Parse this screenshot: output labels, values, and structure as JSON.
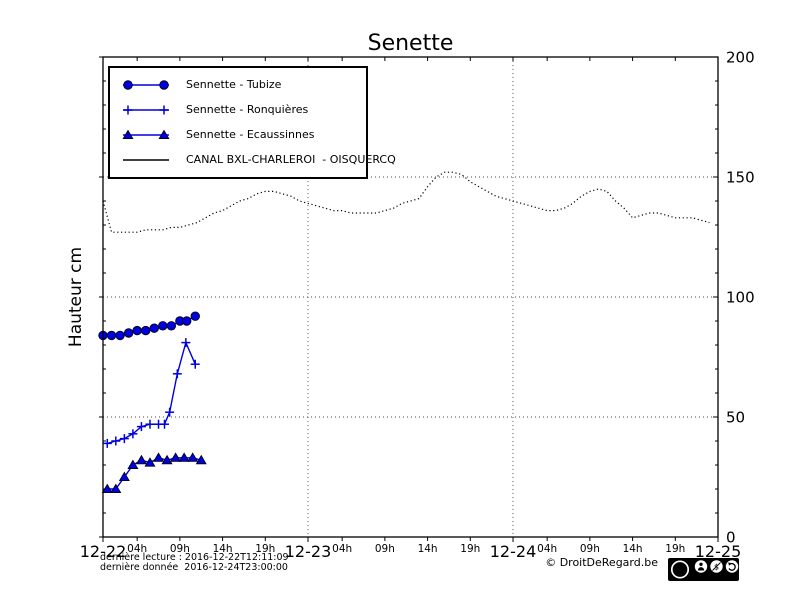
{
  "chart_data": {
    "type": "line",
    "title": "Senette",
    "ylabel": "Hauteur cm",
    "ylim": [
      0,
      200
    ],
    "x_hours_total": 72,
    "grid": {
      "h_values": [
        50,
        100,
        150
      ],
      "v_hours": [
        24,
        48
      ]
    },
    "yticks": {
      "major": [
        0,
        50,
        100,
        150,
        200
      ],
      "minor_step": 10
    },
    "xticks": {
      "days": [
        {
          "label": "12-22",
          "hour": 0
        },
        {
          "label": "12-23",
          "hour": 24
        },
        {
          "label": "12-24",
          "hour": 48
        },
        {
          "label": "12-25",
          "hour": 72
        }
      ],
      "hours": [
        {
          "label": "04h",
          "hour": 4
        },
        {
          "label": "09h",
          "hour": 9
        },
        {
          "label": "14h",
          "hour": 14
        },
        {
          "label": "19h",
          "hour": 19
        },
        {
          "label": "04h",
          "hour": 28
        },
        {
          "label": "09h",
          "hour": 33
        },
        {
          "label": "14h",
          "hour": 38
        },
        {
          "label": "19h",
          "hour": 43
        },
        {
          "label": "04h",
          "hour": 52
        },
        {
          "label": "09h",
          "hour": 57
        },
        {
          "label": "14h",
          "hour": 62
        },
        {
          "label": "19h",
          "hour": 67
        }
      ]
    },
    "series": [
      {
        "name": "Sennette - Tubize",
        "marker": "circle",
        "line": "solid",
        "color": "#0000dd",
        "hours": [
          0,
          1,
          2,
          3,
          4,
          5,
          6,
          7,
          8,
          9,
          9.8,
          10.8
        ],
        "values": [
          84,
          84,
          84,
          85,
          86,
          86,
          87,
          88,
          88,
          90,
          90,
          92
        ]
      },
      {
        "name": "Sennette - Ronquières",
        "marker": "plus",
        "line": "solid",
        "color": "#0000dd",
        "hours": [
          0.5,
          1.5,
          2.5,
          3.5,
          4.5,
          5.5,
          6.5,
          7.2,
          7.8,
          8.7,
          9.7,
          10.8
        ],
        "values": [
          39,
          40,
          41,
          43,
          46,
          47,
          47,
          47,
          52,
          68,
          81,
          72
        ]
      },
      {
        "name": "Sennette - Ecaussinnes",
        "marker": "triangle",
        "line": "solid",
        "color": "#0000dd",
        "hours": [
          0.5,
          1.5,
          2.5,
          3.5,
          4.5,
          5.5,
          6.5,
          7.5,
          8.5,
          9.5,
          10.5,
          11.5
        ],
        "values": [
          20,
          20,
          25,
          30,
          32,
          31,
          33,
          32,
          33,
          33,
          33,
          32
        ]
      },
      {
        "name": "CANAL BXL-CHARLEROI  - OISQUERCQ",
        "marker": "none",
        "line": "dotted",
        "color": "#000000",
        "hours": [
          0,
          1,
          2,
          3,
          4,
          5,
          6,
          7,
          8,
          9,
          10,
          11,
          12,
          13,
          14,
          15,
          16,
          17,
          18,
          19,
          20,
          21,
          22,
          23,
          24,
          25,
          26,
          27,
          28,
          29,
          30,
          31,
          32,
          33,
          34,
          35,
          36,
          37,
          38,
          39,
          40,
          41,
          42,
          43,
          44,
          45,
          46,
          47,
          48,
          49,
          50,
          51,
          52,
          53,
          54,
          55,
          56,
          57,
          58,
          59,
          60,
          61,
          62,
          63,
          64,
          65,
          66,
          67,
          68,
          69,
          70,
          71
        ],
        "values": [
          140,
          127,
          127,
          127,
          127,
          128,
          128,
          128,
          129,
          129,
          130,
          131,
          133,
          135,
          136,
          138,
          140,
          141,
          143,
          144,
          144,
          143,
          142,
          140,
          139,
          138,
          137,
          136,
          136,
          135,
          135,
          135,
          135,
          136,
          137,
          139,
          140,
          141,
          146,
          150,
          152,
          152,
          151,
          148,
          146,
          144,
          142,
          141,
          140,
          139,
          138,
          137,
          136,
          136,
          137,
          139,
          142,
          144,
          145,
          144,
          140,
          137,
          133,
          134,
          135,
          135,
          134,
          133,
          133,
          133,
          132,
          131
        ]
      }
    ]
  },
  "footer": {
    "line1": "dernière lecture : 2016-12-22T12:11:09",
    "line2": "dernière donnée  2016-12-24T23:00:00",
    "copyright": "© DroitDeRegard.be",
    "cc": {
      "logo_text": "cc",
      "labels": [
        "BY",
        "NC",
        "SA"
      ]
    }
  }
}
